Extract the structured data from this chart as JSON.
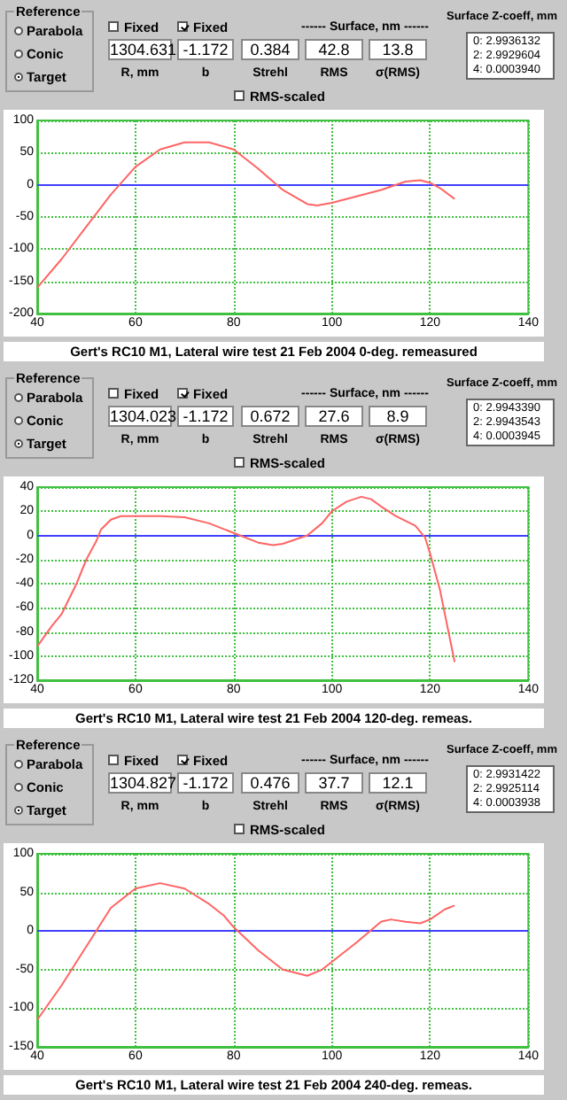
{
  "chart_data": [
    {
      "type": "line",
      "title": "Gert's RC10 M1, Lateral wire test 21 Feb 2004 0-deg. remeasured",
      "annotations": [
        "Reference",
        "Parabola",
        "Conic",
        "Target",
        "Fixed",
        "Fixed",
        "1304.631",
        "-1.172",
        "0.384",
        "42.8",
        "13.8",
        "R, mm",
        "b",
        "Strehl",
        "RMS",
        "σ(RMS)",
        "------ Surface, nm ------",
        "RMS-scaled",
        "Surface Z-coeff, mm",
        "0: 2.9936132",
        "2: 2.9929604",
        "4: 0.0003940"
      ],
      "x": [
        40,
        45,
        50,
        55,
        60,
        65,
        70,
        75,
        80,
        85,
        90,
        95,
        97,
        100,
        105,
        110,
        115,
        118,
        120,
        122,
        125
      ],
      "series": [
        {
          "color": "#ff6464",
          "values": [
            -160,
            -115,
            -65,
            -15,
            28,
            55,
            66,
            66,
            55,
            25,
            -8,
            -30,
            -32,
            -28,
            -18,
            -8,
            5,
            7,
            3,
            -5,
            -22
          ]
        }
      ],
      "xlim": [
        40,
        140
      ],
      "xticks": [
        40,
        60,
        80,
        100,
        120,
        140
      ],
      "ylim": [
        -200,
        100
      ],
      "yticks": [
        -200,
        -150,
        -100,
        -50,
        0,
        50,
        100
      ],
      "grid": true,
      "marker": "none",
      "line_style": "solid",
      "ref_lines": [
        {
          "axis": "y",
          "value": 0,
          "color": "#4040ff"
        }
      ]
    },
    {
      "type": "line",
      "title": "Gert's RC10 M1, Lateral wire test 21 Feb 2004 120-deg. remeas.",
      "annotations": [
        "Reference",
        "Parabola",
        "Conic",
        "Target",
        "Fixed",
        "Fixed",
        "1304.023",
        "-1.172",
        "0.672",
        "27.6",
        "8.9",
        "R, mm",
        "b",
        "Strehl",
        "RMS",
        "σ(RMS)",
        "------ Surface, nm ------",
        "RMS-scaled",
        "Surface Z-coeff, mm",
        "0: 2.9943390",
        "2: 2.9943543",
        "4: 0.0003945"
      ],
      "x": [
        40,
        43,
        45,
        48,
        50,
        52,
        53,
        55,
        57,
        60,
        65,
        70,
        75,
        80,
        85,
        88,
        90,
        95,
        98,
        100,
        103,
        106,
        108,
        110,
        113,
        115,
        117,
        119,
        120,
        122,
        123,
        125
      ],
      "series": [
        {
          "color": "#ff6464",
          "values": [
            -92,
            -75,
            -65,
            -40,
            -20,
            -5,
            5,
            13,
            16,
            16,
            16,
            15,
            10,
            2,
            -6,
            -8,
            -7,
            0,
            10,
            20,
            28,
            32,
            30,
            24,
            16,
            12,
            8,
            -2,
            -15,
            -45,
            -65,
            -105
          ]
        }
      ],
      "xlim": [
        40,
        140
      ],
      "xticks": [
        40,
        60,
        80,
        100,
        120,
        140
      ],
      "ylim": [
        -120,
        40
      ],
      "yticks": [
        -120,
        -100,
        -80,
        -60,
        -40,
        -20,
        0,
        20,
        40
      ],
      "grid": true,
      "marker": "none",
      "line_style": "solid",
      "ref_lines": [
        {
          "axis": "y",
          "value": 0,
          "color": "#4040ff"
        }
      ]
    },
    {
      "type": "line",
      "title": "Gert's RC10 M1, Lateral wire test 21 Feb 2004 240-deg. remeas.",
      "annotations": [
        "Reference",
        "Parabola",
        "Conic",
        "Target",
        "Fixed",
        "Fixed",
        "1304.827",
        "-1.172",
        "0.476",
        "37.7",
        "12.1",
        "R, mm",
        "b",
        "Strehl",
        "RMS",
        "σ(RMS)",
        "------ Surface, nm ------",
        "RMS-scaled",
        "Surface Z-coeff, mm",
        "0: 2.9931422",
        "2: 2.9925114",
        "4: 0.0003938"
      ],
      "x": [
        40,
        45,
        48,
        52,
        55,
        60,
        65,
        70,
        75,
        78,
        80,
        85,
        90,
        95,
        98,
        100,
        105,
        110,
        112,
        115,
        118,
        120,
        123,
        125
      ],
      "series": [
        {
          "color": "#ff6464",
          "values": [
            -115,
            -70,
            -40,
            0,
            30,
            55,
            62,
            55,
            35,
            20,
            5,
            -25,
            -50,
            -58,
            -50,
            -40,
            -15,
            12,
            15,
            12,
            10,
            15,
            28,
            33
          ]
        }
      ],
      "xlim": [
        40,
        140
      ],
      "xticks": [
        40,
        60,
        80,
        100,
        120,
        140
      ],
      "ylim": [
        -150,
        100
      ],
      "yticks": [
        -150,
        -100,
        -50,
        0,
        50,
        100
      ],
      "grid": true,
      "marker": "none",
      "line_style": "solid",
      "ref_lines": [
        {
          "axis": "y",
          "value": 0,
          "color": "#4040ff"
        }
      ]
    }
  ]
}
